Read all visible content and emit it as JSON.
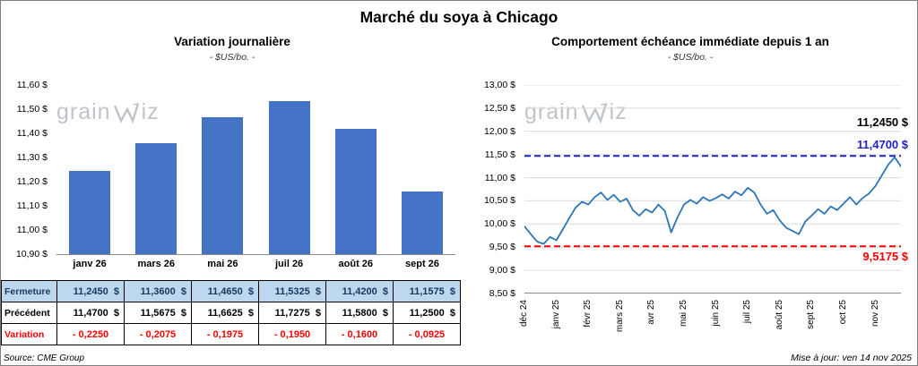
{
  "title": "Marché du soya à Chicago",
  "left_panel": {
    "watermark": {
      "pre": "grain",
      "post": "iz"
    },
    "source": "Source: CME Group",
    "table": {
      "rows": [
        {
          "label": "Fermeture",
          "values": [
            "11,2450  $",
            "11,3600  $",
            "11,4650  $",
            "11,5325  $",
            "11,4200  $",
            "11,1575  $"
          ]
        },
        {
          "label": "Précédent",
          "values": [
            "11,4700  $",
            "11,5675  $",
            "11,6625  $",
            "11,7275  $",
            "11,5800  $",
            "11,2500  $"
          ]
        },
        {
          "label": "Variation",
          "values": [
            "- 0,2250",
            "- 0,2075",
            "- 0,1975",
            "- 0,1950",
            "- 0,1600",
            "- 0,0925"
          ]
        }
      ]
    }
  },
  "right_panel": {
    "watermark": {
      "pre": "grain",
      "post": "iz"
    },
    "update_note": "Mise à jour: ven 14 nov 2025"
  },
  "chart_data": [
    {
      "type": "bar",
      "title": "Variation journalière",
      "subtitle": "- $US/bo. -",
      "categories": [
        "janv 26",
        "mars 26",
        "mai 26",
        "juil 26",
        "août 26",
        "sept 26"
      ],
      "values": [
        11.245,
        11.36,
        11.465,
        11.5325,
        11.42,
        11.1575
      ],
      "ylim": [
        10.9,
        11.6
      ],
      "ytick_labels": [
        "11,60 $",
        "11,50 $",
        "11,40 $",
        "11,30 $",
        "11,20 $",
        "11,10 $",
        "11,00 $",
        "10,90 $"
      ],
      "ytick_values": [
        11.6,
        11.5,
        11.4,
        11.3,
        11.2,
        11.1,
        11.0,
        10.9
      ],
      "bar_color": "#4472C4",
      "grid": false
    },
    {
      "type": "line",
      "title": "Comportement échéance immédiate depuis 1 an",
      "subtitle": "- $US/bo. -",
      "x_labels": [
        "déc 24",
        "janv 25",
        "févr 25",
        "mars 25",
        "avr 25",
        "mai 25",
        "juin 25",
        "juil 25",
        "août 25",
        "sept 25",
        "oct 25",
        "nov 25"
      ],
      "values": [
        9.95,
        9.78,
        9.62,
        9.57,
        9.72,
        9.65,
        9.88,
        10.12,
        10.35,
        10.48,
        10.42,
        10.58,
        10.68,
        10.52,
        10.63,
        10.48,
        10.55,
        10.3,
        10.18,
        10.32,
        10.25,
        10.42,
        10.28,
        9.82,
        10.15,
        10.42,
        10.52,
        10.44,
        10.58,
        10.5,
        10.56,
        10.64,
        10.55,
        10.7,
        10.62,
        10.78,
        10.68,
        10.42,
        10.22,
        10.3,
        10.08,
        9.92,
        9.85,
        9.78,
        10.05,
        10.18,
        10.32,
        10.22,
        10.38,
        10.3,
        10.44,
        10.58,
        10.42,
        10.56,
        10.66,
        10.82,
        11.05,
        11.28,
        11.44,
        11.245
      ],
      "ylim": [
        8.5,
        13.0
      ],
      "ytick_labels": [
        "13,00 $",
        "12,50 $",
        "12,00 $",
        "11,50 $",
        "11,00 $",
        "10,50 $",
        "10,00 $",
        "9,50 $",
        "9,00 $",
        "8,50 $"
      ],
      "ytick_values": [
        13.0,
        12.5,
        12.0,
        11.5,
        11.0,
        10.5,
        10.0,
        9.5,
        9.0,
        8.5
      ],
      "line_color": "#2E75B6",
      "grid": true,
      "legend": "none",
      "ref_lines": [
        {
          "value": 11.47,
          "label": "11,4700 $",
          "color": "#2222CC",
          "style": "dashed"
        },
        {
          "value": 9.5175,
          "label": "9,5175 $",
          "color": "#FF0000",
          "style": "dashed"
        }
      ],
      "last_price_label": "11,2450 $"
    }
  ]
}
